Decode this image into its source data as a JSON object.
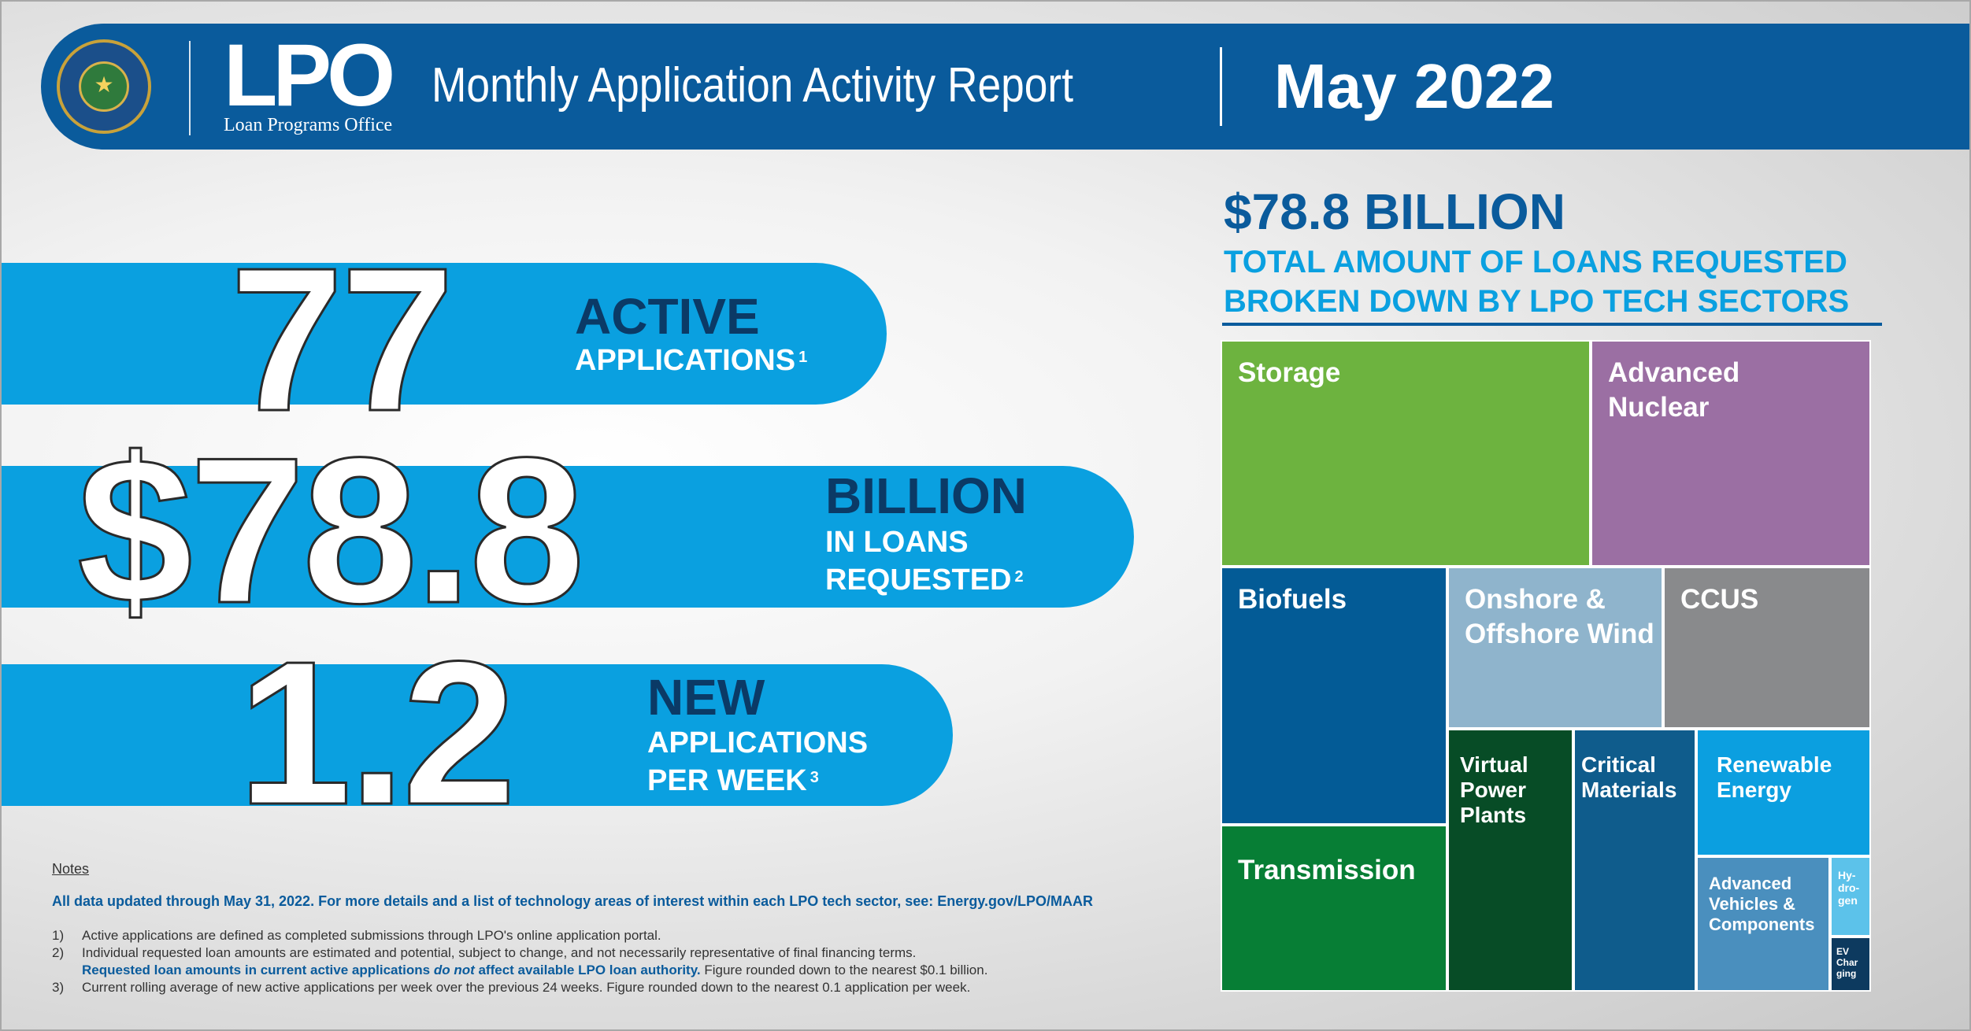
{
  "header": {
    "org_short": "LPO",
    "org_full": "Loan Programs Office",
    "title": "Monthly Application Activity Report",
    "date": "May 2022"
  },
  "stats": [
    {
      "value": "77",
      "head": "ACTIVE",
      "sub_lines": [
        "APPLICATIONS"
      ],
      "footnote": "1"
    },
    {
      "value": "$78.8",
      "head": "BILLION",
      "sub_lines": [
        "IN LOANS",
        "REQUESTED"
      ],
      "footnote": "2"
    },
    {
      "value": "1.2",
      "head": "NEW",
      "sub_lines": [
        "APPLICATIONS",
        "PER WEEK"
      ],
      "footnote": "3"
    }
  ],
  "total": {
    "headline": "$78.8 BILLION",
    "sub_line1": "TOTAL AMOUNT OF LOANS REQUESTED",
    "sub_line2": "BROKEN DOWN BY LPO TECH SECTORS"
  },
  "sectors": [
    {
      "name": "Storage",
      "color": "#6db33f"
    },
    {
      "name": "Advanced Nuclear",
      "color": "#9b6fa3"
    },
    {
      "name": "Biofuels",
      "color": "#035b96"
    },
    {
      "name": "Onshore & Offshore Wind",
      "color": "#8fb4cc"
    },
    {
      "name": "CCUS",
      "color": "#898a8c"
    },
    {
      "name": "Transmission",
      "color": "#077e35"
    },
    {
      "name": "Virtual Power Plants",
      "color": "#074c26"
    },
    {
      "name": "Critical Materials",
      "color": "#0f5c8c"
    },
    {
      "name": "Renewable Energy",
      "color": "#0b9fe0"
    },
    {
      "name": "Advanced Vehicles & Components",
      "color": "#4a8fbe"
    },
    {
      "name": "Hy-dro-gen",
      "color": "#5cc2ea"
    },
    {
      "name": "EV Char ging",
      "color": "#0d3a5f"
    }
  ],
  "notes": {
    "title": "Notes",
    "lead": "All data updated through May 31, 2022.  For more details and a list of technology areas of interest within each LPO tech sector, see:",
    "link": "Energy.gov/LPO/MAAR",
    "n1_num": "1)",
    "n1": "Active applications are defined as completed submissions through LPO's online application portal.",
    "n2_num": "2)",
    "n2": "Individual requested loan amounts are estimated and potential, subject to change, and not necessarily representative of final financing terms.",
    "n2b_a": "Requested loan amounts in current active applications ",
    "n2b_em": "do not",
    "n2b_b": " affect available LPO loan authority.",
    "n2b_c": "  Figure rounded down to the nearest $0.1 billion.",
    "n3_num": "3)",
    "n3": "Current rolling average of new active applications per week over the previous 24 weeks.  Figure rounded down to the nearest 0.1 application per week."
  }
}
